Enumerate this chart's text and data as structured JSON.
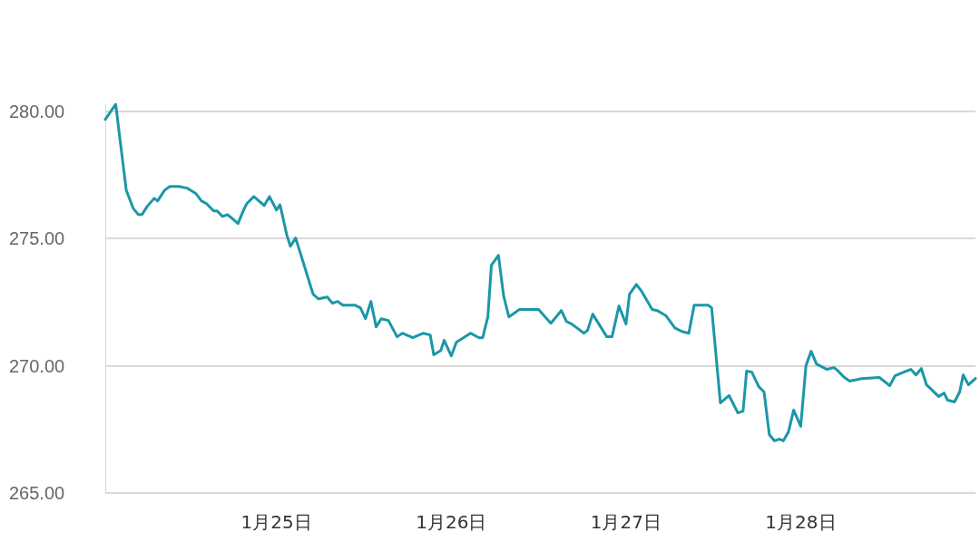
{
  "chart_data": {
    "type": "line",
    "x": [
      "--01-24T00:29",
      "--01-24T01:55",
      "--01-24T03:22",
      "--01-24T04:19",
      "--01-24T05:02",
      "--01-24T05:31",
      "--01-24T06:14",
      "--01-24T07:12",
      "--01-24T07:41",
      "--01-24T08:38",
      "--01-24T09:22",
      "--01-24T10:34",
      "--01-24T11:46",
      "--01-24T12:58",
      "--01-24T13:41",
      "--01-24T14:24",
      "--01-24T15:22",
      "--01-24T15:50",
      "--01-24T16:34",
      "--01-24T17:17",
      "--01-24T18:43",
      "--01-24T19:26",
      "--01-24T19:55",
      "--01-24T20:53",
      "--01-24T22:19",
      "--01-24T23:02",
      "--01-25T00:00",
      "--01-25T00:29",
      "--01-25T01:26",
      "--01-25T01:55",
      "--01-25T02:38",
      "--01-25T05:02",
      "--01-25T05:46",
      "--01-25T06:58",
      "--01-25T07:41",
      "--01-25T08:24",
      "--01-25T09:07",
      "--01-25T10:48",
      "--01-25T11:31",
      "--01-25T12:14",
      "--01-25T12:58",
      "--01-25T13:41",
      "--01-25T14:24",
      "--01-25T15:22",
      "--01-25T16:34",
      "--01-25T17:17",
      "--01-25T18:43",
      "--01-25T20:10",
      "--01-25T21:07",
      "--01-25T21:36",
      "--01-25T22:34",
      "--01-25T23:02",
      "--01-26T00:00",
      "--01-26T00:43",
      "--01-26T01:41",
      "--01-26T02:38",
      "--01-26T03:50",
      "--01-26T04:19",
      "--01-26T05:02",
      "--01-26T05:31",
      "--01-26T06:29",
      "--01-26T07:12",
      "--01-26T07:55",
      "--01-26T09:22",
      "--01-26T11:17",
      "--01-26T12:00",
      "--01-26T13:41",
      "--01-26T15:07",
      "--01-26T15:50",
      "--01-26T16:34",
      "--01-26T18:14",
      "--01-26T18:43",
      "--01-26T19:26",
      "--01-26T21:22",
      "--01-26T22:05",
      "--01-26T23:02",
      "--01-27T00:00",
      "--01-27T00:29",
      "--01-27T01:26",
      "--01-27T02:10",
      "--01-27T03:36",
      "--01-27T04:19",
      "--01-27T05:31",
      "--01-27T06:43",
      "--01-27T07:41",
      "--01-27T08:38",
      "--01-27T09:22",
      "--01-27T11:17",
      "--01-27T11:46",
      "--01-27T12:58",
      "--01-27T14:10",
      "--01-27T15:22",
      "--01-27T16:05",
      "--01-27T16:34",
      "--01-27T17:17",
      "--01-27T18:14",
      "--01-27T18:58",
      "--01-27T19:41",
      "--01-27T20:24",
      "--01-27T21:07",
      "--01-27T21:36",
      "--01-27T22:19",
      "--01-27T23:02",
      "--01-28T00:00",
      "--01-28T00:43",
      "--01-28T01:26",
      "--01-28T02:10",
      "--01-28T03:36",
      "--01-28T04:34",
      "--01-28T05:02",
      "--01-28T06:00",
      "--01-28T06:43",
      "--01-28T08:24",
      "--01-28T10:48",
      "--01-28T12:14",
      "--01-28T12:58",
      "--01-28T13:55",
      "--01-28T15:07",
      "--01-28T15:50",
      "--01-28T16:34",
      "--01-28T17:17",
      "--01-28T18:58",
      "--01-28T19:41",
      "--01-28T20:10",
      "--01-28T21:07",
      "--01-28T21:50",
      "--01-28T22:19",
      "--01-28T23:02",
      "--01-29T00:00"
    ],
    "series": [
      {
        "color": "#1b97a8",
        "values": [
          279.68,
          280.28,
          276.9,
          276.19,
          275.94,
          275.94,
          276.26,
          276.58,
          276.48,
          276.9,
          277.05,
          277.05,
          276.98,
          276.76,
          276.48,
          276.37,
          276.09,
          276.09,
          275.87,
          275.94,
          275.59,
          276.09,
          276.37,
          276.65,
          276.3,
          276.65,
          276.12,
          276.33,
          275.12,
          274.7,
          275.02,
          272.81,
          272.63,
          272.7,
          272.46,
          272.53,
          272.38,
          272.38,
          272.28,
          271.85,
          272.53,
          271.53,
          271.85,
          271.78,
          271.14,
          271.28,
          271.1,
          271.28,
          271.21,
          270.43,
          270.6,
          271.0,
          270.39,
          270.93,
          271.1,
          271.28,
          271.1,
          271.1,
          271.92,
          273.95,
          274.34,
          272.74,
          271.92,
          272.21,
          272.21,
          272.21,
          271.67,
          272.17,
          271.74,
          271.64,
          271.28,
          271.39,
          272.03,
          271.14,
          271.14,
          272.35,
          271.64,
          272.81,
          273.2,
          272.92,
          272.21,
          272.17,
          271.96,
          271.49,
          271.35,
          271.28,
          272.38,
          272.38,
          272.28,
          268.54,
          268.83,
          268.15,
          268.22,
          269.79,
          269.75,
          269.18,
          268.97,
          267.3,
          267.05,
          267.12,
          267.05,
          267.4,
          268.26,
          267.62,
          270.0,
          270.57,
          270.07,
          269.86,
          269.93,
          269.82,
          269.54,
          269.4,
          269.5,
          269.54,
          269.22,
          269.61,
          269.72,
          269.86,
          269.64,
          269.89,
          269.25,
          268.79,
          268.93,
          268.65,
          268.58,
          268.97,
          269.64,
          269.25,
          269.5
        ]
      }
    ],
    "xlim": [
      "--01-24T00:29",
      "--01-29T00:00"
    ],
    "xticks": [
      {
        "value": "--01-25",
        "label": "1月25日"
      },
      {
        "value": "--01-26",
        "label": "1月26日"
      },
      {
        "value": "--01-27",
        "label": "1月27日"
      },
      {
        "value": "--01-28",
        "label": "1月28日"
      }
    ],
    "ylim": [
      265,
      280.28
    ],
    "yticks": [
      {
        "value": 265,
        "label": "265.00"
      },
      {
        "value": 270,
        "label": "270.00"
      },
      {
        "value": 275,
        "label": "275.00"
      },
      {
        "value": 280,
        "label": "280.00"
      }
    ],
    "grid": "y",
    "marker": "none",
    "line_style": "solid"
  }
}
